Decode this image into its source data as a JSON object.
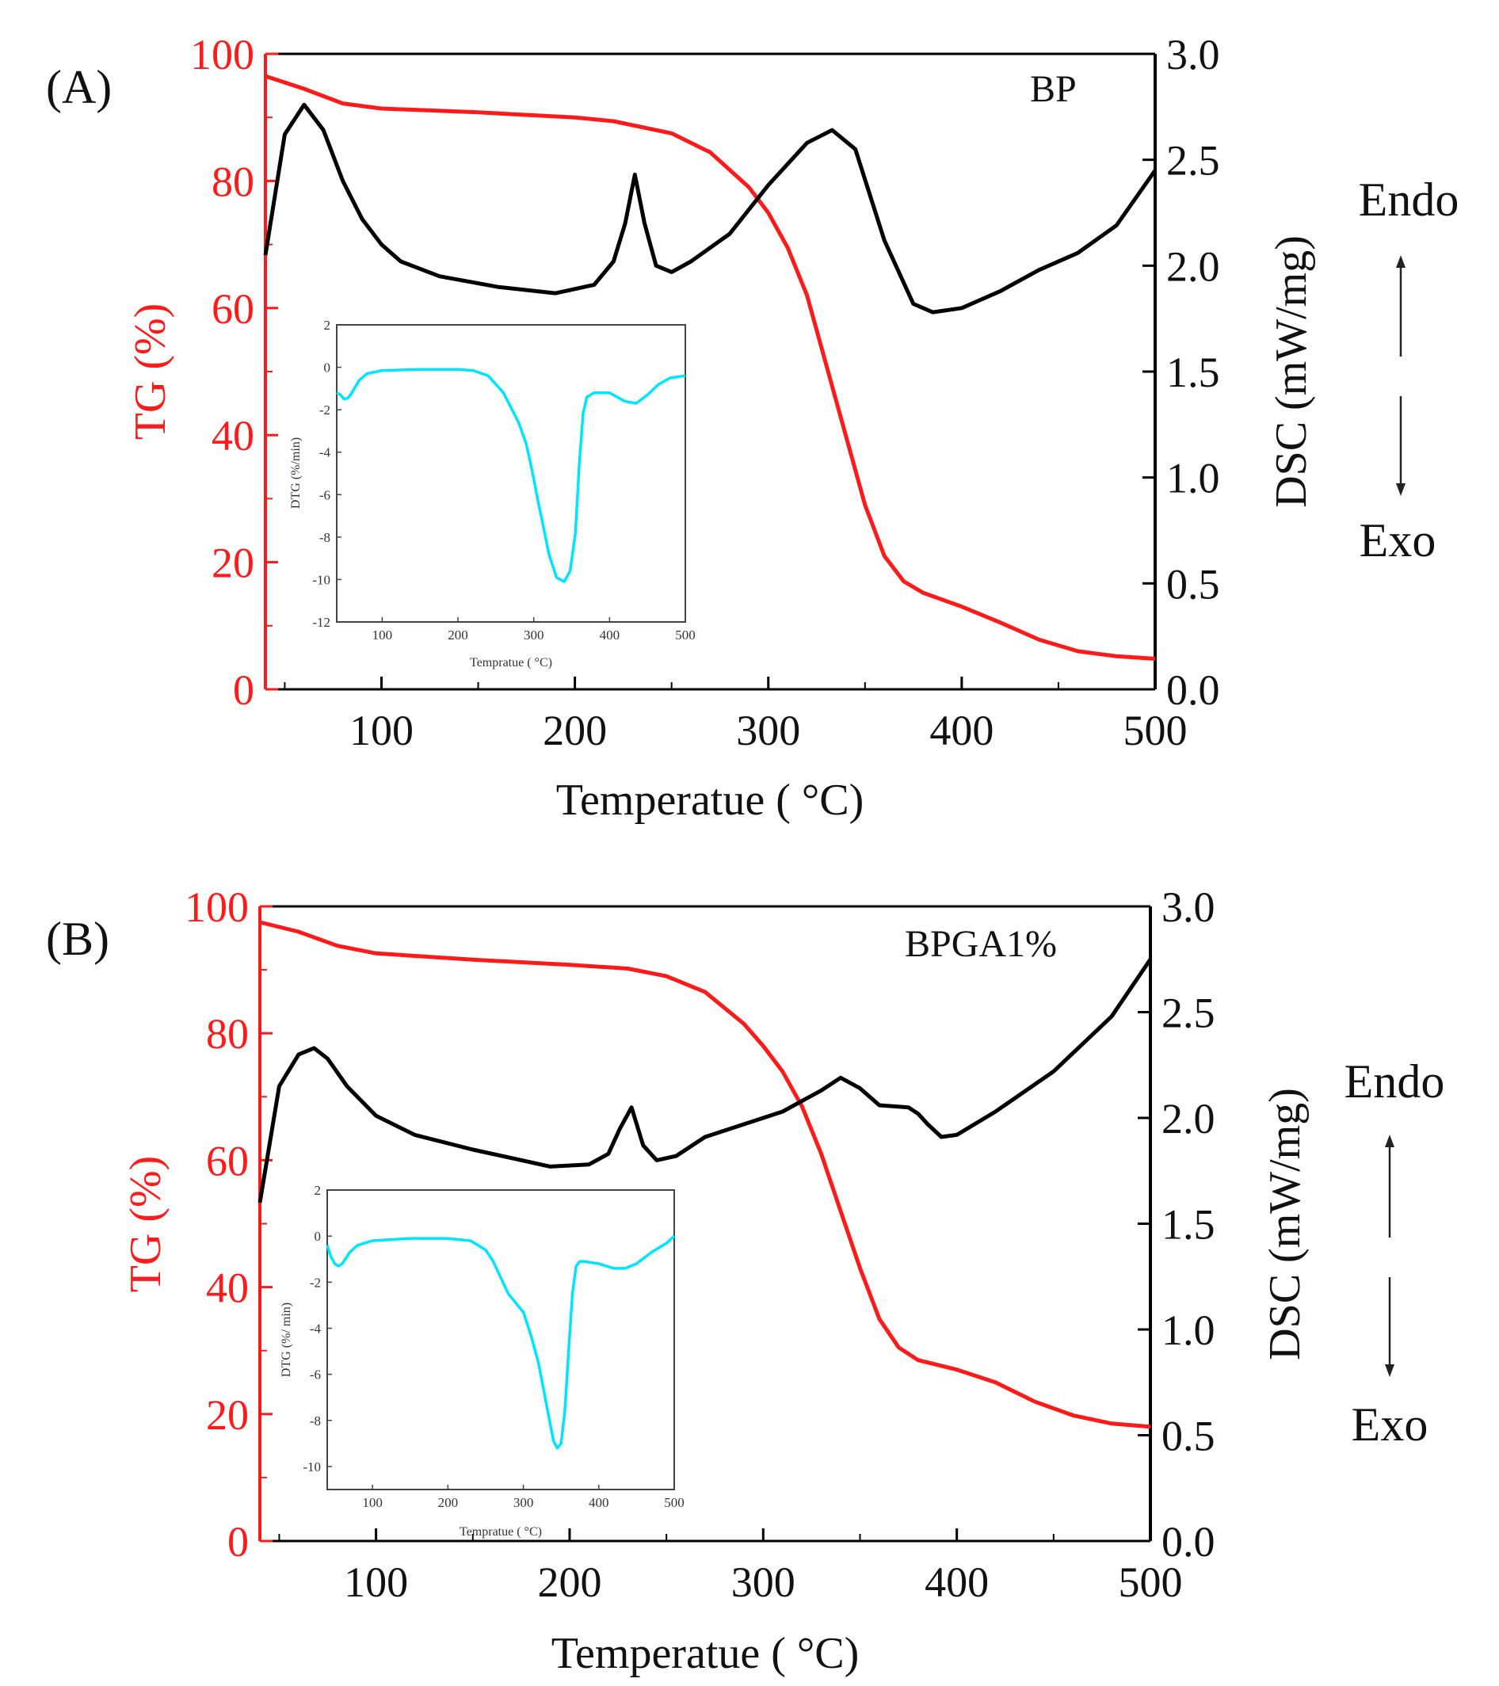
{
  "colors": {
    "tg": "#ff1a1a",
    "dsc": "#000000",
    "dtg": "#00e5ff",
    "axis_tg": "#ff1a1a",
    "axis": "#000000",
    "inset_axis": "#444444"
  },
  "chart_data": [
    {
      "type": "line",
      "panel": "(A)",
      "sample": "BP",
      "xlabel": "Temperatue ( °C)",
      "ylabel_left": "TG (%)",
      "ylabel_right": "DSC (mW/mg)",
      "xlim": [
        40,
        500
      ],
      "ylim_left": [
        0,
        100
      ],
      "ylim_right": [
        0,
        3.0
      ],
      "x_ticks": [
        100,
        200,
        300,
        400,
        500
      ],
      "y_ticks_left": [
        0,
        20,
        40,
        60,
        80,
        100
      ],
      "y_ticks_right": [
        "0.0",
        "0.5",
        "1.0",
        "1.5",
        "2.0",
        "2.5",
        "3.0"
      ],
      "annotations": {
        "endo": "Endo",
        "exo": "Exo"
      },
      "series": [
        {
          "name": "TG",
          "axis": "left",
          "color": "#ff1a1a",
          "x": [
            40,
            60,
            80,
            100,
            150,
            200,
            220,
            250,
            270,
            290,
            300,
            310,
            320,
            330,
            340,
            350,
            360,
            370,
            380,
            400,
            420,
            440,
            460,
            480,
            500
          ],
          "y": [
            96.5,
            94.5,
            92.2,
            91.4,
            90.8,
            90,
            89.4,
            87.5,
            84.5,
            79,
            75,
            69.5,
            62,
            51,
            40,
            29,
            21,
            17,
            15.2,
            13,
            10.5,
            7.8,
            6,
            5.2,
            4.8
          ]
        },
        {
          "name": "DSC",
          "axis": "right",
          "color": "#000000",
          "x": [
            40,
            50,
            60,
            70,
            80,
            90,
            100,
            110,
            130,
            160,
            190,
            210,
            220,
            226,
            231,
            236,
            242,
            250,
            260,
            280,
            300,
            320,
            333,
            345,
            360,
            375,
            385,
            400,
            420,
            440,
            460,
            480,
            500
          ],
          "y": [
            2.05,
            2.62,
            2.76,
            2.64,
            2.4,
            2.22,
            2.1,
            2.02,
            1.95,
            1.9,
            1.87,
            1.91,
            2.02,
            2.2,
            2.43,
            2.2,
            2.0,
            1.97,
            2.02,
            2.15,
            2.38,
            2.58,
            2.64,
            2.55,
            2.12,
            1.82,
            1.78,
            1.8,
            1.88,
            1.98,
            2.06,
            2.19,
            2.45
          ]
        }
      ],
      "inset": {
        "type": "line",
        "xlabel": "Tempratue ( °C)",
        "ylabel": "DTG (%/min)",
        "xlim": [
          40,
          500
        ],
        "ylim": [
          -12,
          2
        ],
        "x_ticks": [
          100,
          200,
          300,
          400,
          500
        ],
        "y_ticks": [
          -12,
          -10,
          -8,
          -6,
          -4,
          -2,
          0,
          2
        ],
        "series": [
          {
            "name": "DTG",
            "color": "#00e5ff",
            "x": [
              40,
              45,
              50,
              55,
              60,
              70,
              80,
              100,
              150,
              200,
              220,
              240,
              260,
              280,
              290,
              298,
              305,
              312,
              320,
              330,
              340,
              348,
              355,
              360,
              365,
              370,
              380,
              400,
              420,
              435,
              450,
              465,
              480,
              500
            ],
            "y": [
              -1.2,
              -1.3,
              -1.5,
              -1.45,
              -1.2,
              -0.6,
              -0.3,
              -0.15,
              -0.1,
              -0.1,
              -0.15,
              -0.4,
              -1.2,
              -2.6,
              -3.6,
              -4.9,
              -6.2,
              -7.4,
              -8.8,
              -9.9,
              -10.1,
              -9.6,
              -7.8,
              -4.6,
              -2.2,
              -1.4,
              -1.2,
              -1.2,
              -1.6,
              -1.7,
              -1.3,
              -0.8,
              -0.5,
              -0.4
            ]
          }
        ]
      }
    },
    {
      "type": "line",
      "panel": "(B)",
      "sample": "BPGA1%",
      "xlabel": "Temperatue ( °C)",
      "ylabel_left": "TG (%)",
      "ylabel_right": "DSC (mW/mg)",
      "xlim": [
        40,
        500
      ],
      "ylim_left": [
        0,
        100
      ],
      "ylim_right": [
        0,
        3.0
      ],
      "x_ticks": [
        100,
        200,
        300,
        400,
        500
      ],
      "y_ticks_left": [
        0,
        20,
        40,
        60,
        80,
        100
      ],
      "y_ticks_right": [
        "0.0",
        "0.5",
        "1.0",
        "1.5",
        "2.0",
        "2.5",
        "3.0"
      ],
      "annotations": {
        "endo": "Endo",
        "exo": "Exo"
      },
      "series": [
        {
          "name": "TG",
          "axis": "left",
          "color": "#ff1a1a",
          "x": [
            40,
            60,
            80,
            100,
            150,
            200,
            230,
            250,
            270,
            290,
            300,
            310,
            320,
            330,
            340,
            350,
            360,
            370,
            380,
            400,
            420,
            440,
            460,
            480,
            500
          ],
          "y": [
            97.5,
            96,
            93.8,
            92.6,
            91.6,
            90.8,
            90.2,
            89,
            86.5,
            81.5,
            78,
            74,
            68.5,
            61,
            52,
            43,
            35,
            30.5,
            28.5,
            27,
            25,
            22,
            19.8,
            18.5,
            18
          ]
        },
        {
          "name": "DSC",
          "axis": "right",
          "color": "#000000",
          "x": [
            40,
            50,
            60,
            68,
            75,
            85,
            100,
            120,
            150,
            190,
            210,
            220,
            226,
            232,
            238,
            245,
            255,
            270,
            290,
            310,
            330,
            340,
            350,
            360,
            375,
            380,
            385,
            392,
            400,
            420,
            450,
            480,
            500
          ],
          "y": [
            1.6,
            2.15,
            2.3,
            2.33,
            2.28,
            2.15,
            2.01,
            1.92,
            1.85,
            1.77,
            1.78,
            1.83,
            1.95,
            2.05,
            1.87,
            1.8,
            1.82,
            1.91,
            1.97,
            2.03,
            2.13,
            2.19,
            2.14,
            2.06,
            2.05,
            2.02,
            1.97,
            1.91,
            1.92,
            2.03,
            2.22,
            2.48,
            2.75
          ]
        }
      ],
      "inset": {
        "type": "line",
        "xlabel": "Tempratue ( °C)",
        "ylabel": "DTG (%/ min)",
        "xlim": [
          40,
          500
        ],
        "ylim": [
          -11,
          2
        ],
        "x_ticks": [
          100,
          200,
          300,
          400,
          500
        ],
        "y_ticks": [
          -10,
          -8,
          -6,
          -4,
          -2,
          0,
          2
        ],
        "series": [
          {
            "name": "DTG",
            "color": "#00e5ff",
            "x": [
              40,
              45,
              50,
              55,
              60,
              70,
              80,
              100,
              150,
              200,
              230,
              250,
              260,
              270,
              280,
              290,
              300,
              310,
              320,
              330,
              340,
              345,
              350,
              355,
              360,
              365,
              370,
              375,
              380,
              400,
              420,
              435,
              450,
              470,
              490,
              500
            ],
            "y": [
              -0.4,
              -0.9,
              -1.2,
              -1.3,
              -1.2,
              -0.7,
              -0.4,
              -0.2,
              -0.1,
              -0.1,
              -0.2,
              -0.6,
              -1.1,
              -1.8,
              -2.5,
              -2.9,
              -3.3,
              -4.3,
              -5.5,
              -7.2,
              -8.9,
              -9.2,
              -9,
              -7.6,
              -5,
              -2.5,
              -1.3,
              -1.1,
              -1.1,
              -1.2,
              -1.4,
              -1.4,
              -1.2,
              -0.7,
              -0.3,
              0
            ]
          }
        ]
      }
    }
  ]
}
